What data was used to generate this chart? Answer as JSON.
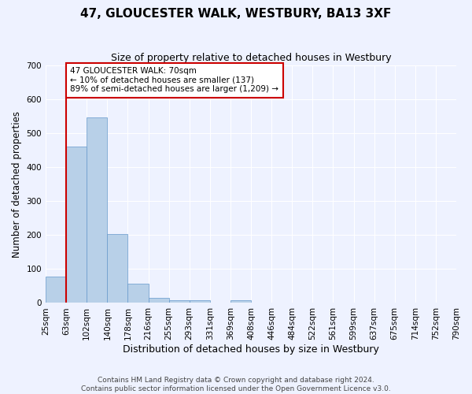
{
  "title": "47, GLOUCESTER WALK, WESTBURY, BA13 3XF",
  "subtitle": "Size of property relative to detached houses in Westbury",
  "xlabel": "Distribution of detached houses by size in Westbury",
  "ylabel": "Number of detached properties",
  "bar_values": [
    78,
    462,
    548,
    204,
    57,
    15,
    9,
    9,
    0,
    8,
    0,
    0,
    0,
    0,
    0,
    0,
    0,
    0,
    0,
    0
  ],
  "x_labels": [
    "25sqm",
    "63sqm",
    "102sqm",
    "140sqm",
    "178sqm",
    "216sqm",
    "255sqm",
    "293sqm",
    "331sqm",
    "369sqm",
    "408sqm",
    "446sqm",
    "484sqm",
    "522sqm",
    "561sqm",
    "599sqm",
    "637sqm",
    "675sqm",
    "714sqm",
    "752sqm",
    "790sqm"
  ],
  "bar_color": "#b8d0e8",
  "bar_edge_color": "#6699cc",
  "vline_x": 1.0,
  "vline_color": "#cc0000",
  "annotation_text": "47 GLOUCESTER WALK: 70sqm\n← 10% of detached houses are smaller (137)\n89% of semi-detached houses are larger (1,209) →",
  "annotation_box_color": "#cc0000",
  "footer_line1": "Contains HM Land Registry data © Crown copyright and database right 2024.",
  "footer_line2": "Contains public sector information licensed under the Open Government Licence v3.0.",
  "bg_color": "#eef2ff",
  "plot_bg_color": "#eef2ff",
  "ylim": [
    0,
    700
  ],
  "yticks": [
    0,
    100,
    200,
    300,
    400,
    500,
    600,
    700
  ],
  "title_fontsize": 11,
  "subtitle_fontsize": 9,
  "xlabel_fontsize": 9,
  "ylabel_fontsize": 8.5,
  "tick_fontsize": 7.5,
  "footer_fontsize": 6.5
}
